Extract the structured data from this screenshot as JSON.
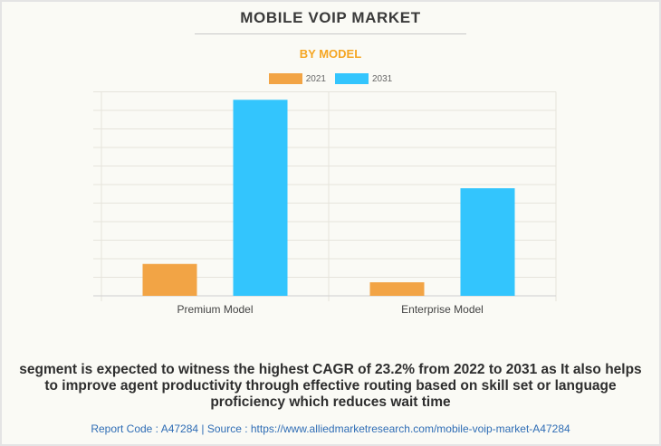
{
  "header": {
    "title": "MOBILE VOIP MARKET",
    "subtitle": "BY MODEL"
  },
  "colors": {
    "series_2021": "#f2a445",
    "series_2031": "#33c5fd",
    "subtitle": "#f5a623",
    "footer_link": "#2f6db5"
  },
  "chart_data": {
    "type": "bar",
    "title": "MOBILE VOIP MARKET",
    "subtitle": "BY MODEL",
    "categories": [
      "Premium Model",
      "Enterprise Model"
    ],
    "series": [
      {
        "name": "2021",
        "values": [
          1.72,
          0.73
        ]
      },
      {
        "name": "2031",
        "values": [
          10.57,
          5.8
        ]
      }
    ],
    "xlabel": "",
    "ylabel": "",
    "ylim": [
      0,
      11
    ],
    "y_ticks_labeled": false,
    "grid": true,
    "legend": "top-center"
  },
  "caption": "segment is expected to witness the highest CAGR of 23.2% from 2022 to 2031 as It also helps to improve agent productivity through effective routing based on skill set or language proficiency which reduces wait time",
  "footer": {
    "text": "Report Code : A47284  |  Source : https://www.alliedmarketresearch.com/mobile-voip-market-A47284"
  }
}
